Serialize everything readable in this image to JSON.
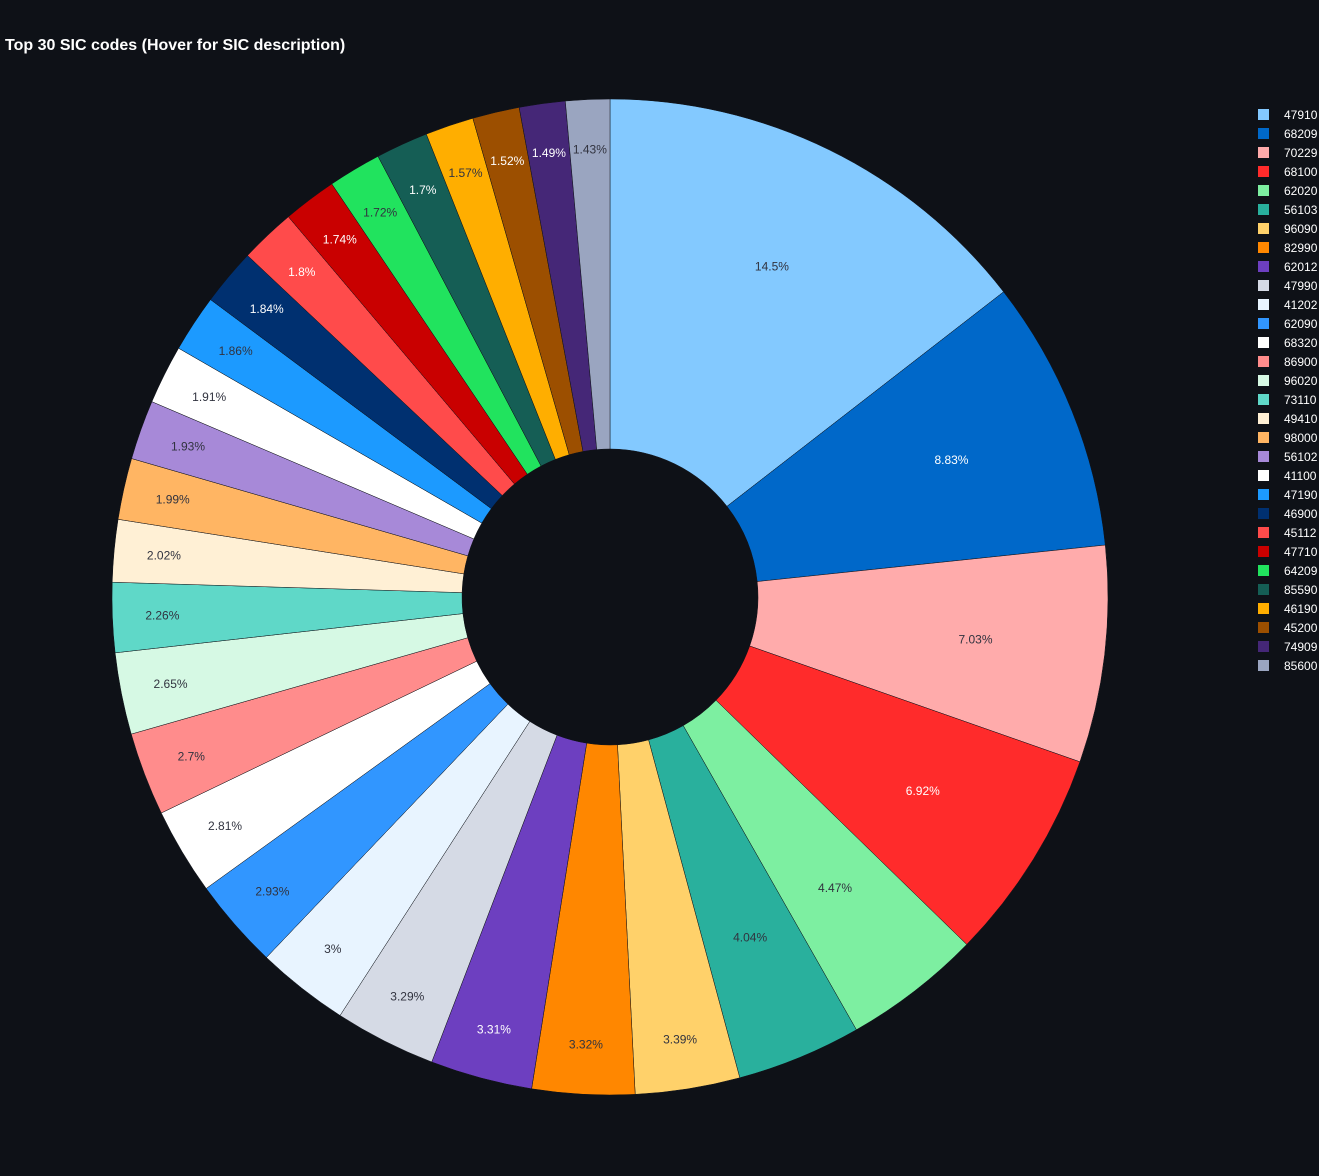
{
  "chart_data": {
    "type": "pie",
    "donut": true,
    "title": "Top 30 SIC codes (Hover for SIC description)",
    "legend_position": "right",
    "labels": [
      "47910",
      "68209",
      "70229",
      "68100",
      "62020",
      "56103",
      "96090",
      "82990",
      "62012",
      "47990",
      "41202",
      "62090",
      "68320",
      "86900",
      "96020",
      "73110",
      "49410",
      "98000",
      "56102",
      "41100",
      "47190",
      "46900",
      "45112",
      "47710",
      "64209",
      "85590",
      "46190",
      "45200",
      "74909",
      "85600"
    ],
    "values": [
      14.5,
      8.83,
      7.03,
      6.92,
      4.47,
      4.04,
      3.39,
      3.32,
      3.31,
      3.29,
      3.0,
      2.93,
      2.81,
      2.7,
      2.65,
      2.26,
      2.02,
      1.99,
      1.93,
      1.91,
      1.86,
      1.84,
      1.8,
      1.74,
      1.72,
      1.7,
      1.57,
      1.52,
      1.49,
      1.43
    ],
    "text_labels": [
      "14.5%",
      "8.83%",
      "7.03%",
      "6.92%",
      "4.47%",
      "4.04%",
      "3.39%",
      "3.32%",
      "3.31%",
      "3.29%",
      "3%",
      "2.93%",
      "2.81%",
      "2.7%",
      "2.65%",
      "2.26%",
      "2.02%",
      "1.99%",
      "1.93%",
      "1.91%",
      "1.86%",
      "1.84%",
      "1.8%",
      "1.74%",
      "1.72%",
      "1.7%",
      "1.57%",
      "1.52%",
      "1.49%",
      "1.43%"
    ],
    "colors": [
      "#83c9ff",
      "#0068c9",
      "#ffabab",
      "#ff2b2b",
      "#7defa1",
      "#29b09d",
      "#ffd16a",
      "#ff8700",
      "#6d3fc0",
      "#d5dae5",
      "#e8f4ff",
      "#3196ff",
      "#ffffff",
      "#ff8c8c",
      "#d6f9e4",
      "#5fd8c8",
      "#fff0d5",
      "#ffb563",
      "#a789d8",
      "#ffffff",
      "#1c9aff",
      "#003070",
      "#ff4b4b",
      "#c90000",
      "#21e35e",
      "#155e55",
      "#ffae00",
      "#9c4f00",
      "#452777",
      "#9aa5c0"
    ],
    "label_colors": [
      "#31333f",
      "#ffffff",
      "#31333f",
      "#ffffff",
      "#31333f",
      "#31333f",
      "#31333f",
      "#31333f",
      "#ffffff",
      "#31333f",
      "#31333f",
      "#31333f",
      "#31333f",
      "#31333f",
      "#31333f",
      "#31333f",
      "#31333f",
      "#31333f",
      "#31333f",
      "#31333f",
      "#31333f",
      "#ffffff",
      "#ffffff",
      "#ffffff",
      "#31333f",
      "#ffffff",
      "#31333f",
      "#ffffff",
      "#ffffff",
      "#31333f"
    ]
  }
}
